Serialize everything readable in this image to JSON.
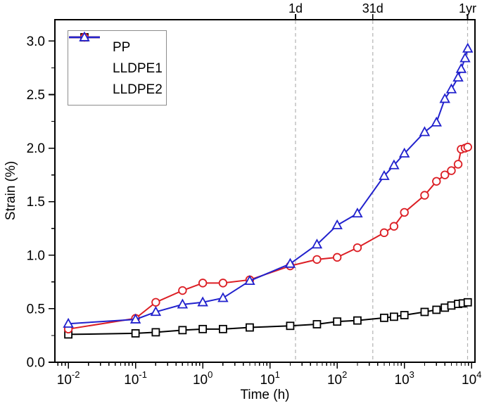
{
  "chart_data": {
    "type": "line",
    "title": "",
    "xlabel": "Time (h)",
    "ylabel": "Strain (%)",
    "x_scale": "log",
    "xlim_log": [
      -2.2,
      4.05
    ],
    "ylim": [
      0,
      3.2
    ],
    "y_major_ticks": [
      0.0,
      0.5,
      1.0,
      1.5,
      2.0,
      2.5,
      3.0
    ],
    "y_minor_step": 0.25,
    "x_major_tick_exponents": [
      -2,
      -1,
      0,
      1,
      2,
      3,
      4
    ],
    "grid": false,
    "legend_position": "top-left",
    "frame_color": "#000000",
    "reference_line_color": "#b3b3b3",
    "time_markers": [
      {
        "label": "1d",
        "x_log": 1.38
      },
      {
        "label": "31d",
        "x_log": 2.53
      },
      {
        "label": "1yr",
        "x_log": 3.94
      }
    ],
    "series": [
      {
        "name": "PP",
        "color": "#000000",
        "marker": "square",
        "x": [
          0.01,
          0.1,
          0.2,
          0.5,
          1,
          2,
          5,
          20,
          50,
          100,
          200,
          500,
          700,
          1000,
          2000,
          3000,
          4000,
          5000,
          6300,
          7400,
          8760
        ],
        "y": [
          0.26,
          0.27,
          0.28,
          0.3,
          0.31,
          0.31,
          0.325,
          0.34,
          0.355,
          0.38,
          0.39,
          0.415,
          0.425,
          0.44,
          0.47,
          0.49,
          0.51,
          0.53,
          0.545,
          0.55,
          0.56
        ]
      },
      {
        "name": "LLDPE1",
        "color": "#dc1e24",
        "marker": "circle",
        "x": [
          0.01,
          0.1,
          0.2,
          0.5,
          1,
          2,
          5,
          20,
          50,
          100,
          200,
          500,
          700,
          1000,
          2000,
          3000,
          4000,
          5000,
          6300,
          7000,
          8000,
          8760
        ],
        "y": [
          0.31,
          0.41,
          0.56,
          0.67,
          0.74,
          0.74,
          0.77,
          0.9,
          0.96,
          0.98,
          1.07,
          1.21,
          1.27,
          1.4,
          1.56,
          1.69,
          1.75,
          1.79,
          1.85,
          1.99,
          2.0,
          2.01
        ]
      },
      {
        "name": "LLDPE2",
        "color": "#2121cd",
        "marker": "triangle",
        "x": [
          0.01,
          0.1,
          0.2,
          0.5,
          1,
          2,
          5,
          20,
          50,
          100,
          200,
          500,
          700,
          1000,
          2000,
          3000,
          4000,
          5000,
          6300,
          7000,
          8000,
          8760
        ],
        "y": [
          0.36,
          0.4,
          0.47,
          0.54,
          0.56,
          0.6,
          0.76,
          0.92,
          1.1,
          1.28,
          1.39,
          1.74,
          1.84,
          1.95,
          2.15,
          2.24,
          2.46,
          2.55,
          2.66,
          2.74,
          2.84,
          2.93
        ]
      }
    ]
  }
}
